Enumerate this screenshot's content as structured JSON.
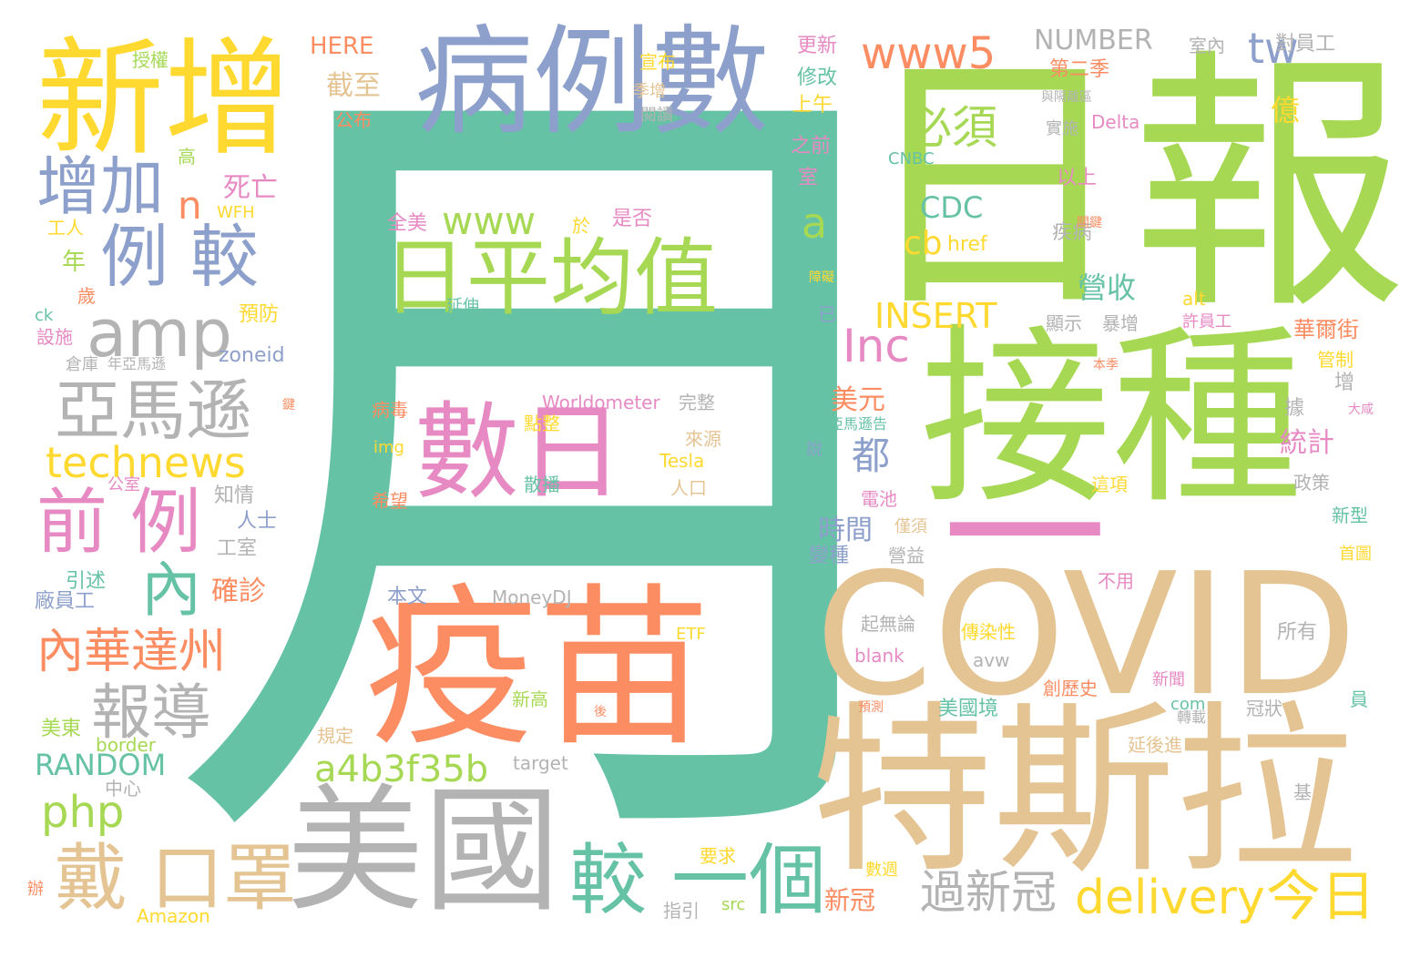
{
  "palette": {
    "green": "#a6d854",
    "teal": "#66c2a5",
    "orange": "#fc8d62",
    "blue": "#8da0cb",
    "pink": "#e78ac3",
    "yellow": "#ffd92f",
    "tan": "#e5c494",
    "gray": "#b3b3b3"
  },
  "words": [
    {
      "text": "月",
      "color": "teal"
    },
    {
      "text": "日報",
      "color": "green"
    },
    {
      "text": "接種",
      "color": "green"
    },
    {
      "text": "疫苗",
      "color": "orange"
    },
    {
      "text": "COVID",
      "color": "tan"
    },
    {
      "text": "特斯拉",
      "color": "tan"
    },
    {
      "text": "美國",
      "color": "gray"
    },
    {
      "text": "病例數",
      "color": "blue"
    },
    {
      "text": "新增",
      "color": "yellow"
    },
    {
      "text": "日平均值",
      "color": "green"
    },
    {
      "text": "數日",
      "color": "pink"
    },
    {
      "text": "一",
      "color": "pink"
    },
    {
      "text": "增加",
      "color": "blue"
    },
    {
      "text": "例 較",
      "color": "blue"
    },
    {
      "text": "amp",
      "color": "gray"
    },
    {
      "text": "亞馬遜",
      "color": "gray"
    },
    {
      "text": "technews",
      "color": "yellow"
    },
    {
      "text": "前 例",
      "color": "pink"
    },
    {
      "text": "內",
      "color": "teal"
    },
    {
      "text": "內華達州",
      "color": "orange"
    },
    {
      "text": "報導",
      "color": "gray"
    },
    {
      "text": "戴 口罩",
      "color": "tan"
    },
    {
      "text": "較 一個",
      "color": "teal"
    },
    {
      "text": "過新冠",
      "color": "gray"
    },
    {
      "text": "delivery",
      "color": "yellow"
    },
    {
      "text": "今日",
      "color": "yellow"
    },
    {
      "text": "php",
      "color": "green"
    },
    {
      "text": "a4b3f35b",
      "color": "green"
    },
    {
      "text": "RANDOM",
      "color": "teal"
    },
    {
      "text": "www5",
      "color": "orange"
    },
    {
      "text": "www",
      "color": "green"
    },
    {
      "text": "tw",
      "color": "blue"
    },
    {
      "text": "NUMBER",
      "color": "gray"
    },
    {
      "text": "必須",
      "color": "green"
    },
    {
      "text": "Inc",
      "color": "pink"
    },
    {
      "text": "INSERT",
      "color": "yellow"
    },
    {
      "text": "CDC",
      "color": "teal"
    },
    {
      "text": "cb",
      "color": "yellow"
    },
    {
      "text": "href",
      "color": "yellow"
    },
    {
      "text": "a",
      "color": "green"
    },
    {
      "text": "n",
      "color": "orange"
    },
    {
      "text": "營收",
      "color": "teal"
    },
    {
      "text": "HERE",
      "color": "orange"
    },
    {
      "text": "截至",
      "color": "tan"
    },
    {
      "text": "公布",
      "color": "orange"
    },
    {
      "text": "死亡",
      "color": "pink"
    },
    {
      "text": "WFH",
      "color": "yellow"
    },
    {
      "text": "美元",
      "color": "orange"
    },
    {
      "text": "都",
      "color": "blue"
    },
    {
      "text": "時間",
      "color": "blue"
    },
    {
      "text": "變種",
      "color": "blue"
    },
    {
      "text": "確診",
      "color": "orange"
    },
    {
      "text": "統計",
      "color": "pink"
    },
    {
      "text": "華爾街",
      "color": "orange"
    },
    {
      "text": "Delta",
      "color": "pink"
    },
    {
      "text": "CNBC",
      "color": "teal"
    },
    {
      "text": "億",
      "color": "yellow"
    },
    {
      "text": "以上",
      "color": "pink"
    },
    {
      "text": "疾病",
      "color": "gray"
    },
    {
      "text": "高",
      "color": "green"
    },
    {
      "text": "工人",
      "color": "yellow"
    },
    {
      "text": "年",
      "color": "green"
    },
    {
      "text": "歲",
      "color": "orange"
    },
    {
      "text": "ck",
      "color": "teal"
    },
    {
      "text": "設施",
      "color": "pink"
    },
    {
      "text": "預防",
      "color": "yellow"
    },
    {
      "text": "zoneid",
      "color": "blue"
    },
    {
      "text": "倉庫",
      "color": "gray"
    },
    {
      "text": "年亞馬遜",
      "color": "gray"
    },
    {
      "text": "知情",
      "color": "gray"
    },
    {
      "text": "公室",
      "color": "pink"
    },
    {
      "text": "人士",
      "color": "blue"
    },
    {
      "text": "工室",
      "color": "gray"
    },
    {
      "text": "引述",
      "color": "teal"
    },
    {
      "text": "廠員工",
      "color": "blue"
    },
    {
      "text": "美東",
      "color": "green"
    },
    {
      "text": "border",
      "color": "green"
    },
    {
      "text": "中心",
      "color": "gray"
    },
    {
      "text": "辦",
      "color": "orange"
    },
    {
      "text": "Amazon",
      "color": "yellow"
    },
    {
      "text": "指引",
      "color": "gray"
    },
    {
      "text": "src",
      "color": "green"
    },
    {
      "text": "要求",
      "color": "yellow"
    },
    {
      "text": "數週",
      "color": "yellow"
    },
    {
      "text": "新冠",
      "color": "orange"
    },
    {
      "text": "target",
      "color": "gray"
    },
    {
      "text": "規定",
      "color": "tan"
    },
    {
      "text": "新高",
      "color": "green"
    },
    {
      "text": "MoneyDJ",
      "color": "gray"
    },
    {
      "text": "本文",
      "color": "blue"
    },
    {
      "text": "ETF",
      "color": "yellow"
    },
    {
      "text": "希望",
      "color": "orange"
    },
    {
      "text": "散播",
      "color": "teal"
    },
    {
      "text": "img",
      "color": "yellow"
    },
    {
      "text": "點整",
      "color": "yellow"
    },
    {
      "text": "病毒",
      "color": "orange"
    },
    {
      "text": "Worldometer",
      "color": "pink"
    },
    {
      "text": "完整",
      "color": "gray"
    },
    {
      "text": "來源",
      "color": "tan"
    },
    {
      "text": "Tesla",
      "color": "yellow"
    },
    {
      "text": "人口",
      "color": "tan"
    },
    {
      "text": "全美",
      "color": "pink"
    },
    {
      "text": "於",
      "color": "yellow"
    },
    {
      "text": "是否",
      "color": "pink"
    },
    {
      "text": "延伸",
      "color": "teal"
    },
    {
      "text": "授權",
      "color": "green"
    },
    {
      "text": "宣布",
      "color": "yellow"
    },
    {
      "text": "季增",
      "color": "tan"
    },
    {
      "text": "閱讀",
      "color": "gray"
    },
    {
      "text": "更新",
      "color": "pink"
    },
    {
      "text": "修改",
      "color": "teal"
    },
    {
      "text": "上午",
      "color": "yellow"
    },
    {
      "text": "之前",
      "color": "pink"
    },
    {
      "text": "室",
      "color": "pink"
    },
    {
      "text": "第二季",
      "color": "orange"
    },
    {
      "text": "室內",
      "color": "gray"
    },
    {
      "text": "對員工",
      "color": "gray"
    },
    {
      "text": "與隔離區",
      "color": "gray"
    },
    {
      "text": "實施",
      "color": "gray"
    },
    {
      "text": "障礙",
      "color": "yellow"
    },
    {
      "text": "已",
      "color": "blue"
    },
    {
      "text": "顯示",
      "color": "gray"
    },
    {
      "text": "暴增",
      "color": "gray"
    },
    {
      "text": "alt",
      "color": "yellow"
    },
    {
      "text": "許員工",
      "color": "pink"
    },
    {
      "text": "管制",
      "color": "yellow"
    },
    {
      "text": "本季",
      "color": "orange"
    },
    {
      "text": "增",
      "color": "gray"
    },
    {
      "text": "據",
      "color": "gray"
    },
    {
      "text": "大咸",
      "color": "pink"
    },
    {
      "text": "亞馬遜告",
      "color": "teal"
    },
    {
      "text": "說",
      "color": "blue"
    },
    {
      "text": "電池",
      "color": "pink"
    },
    {
      "text": "這項",
      "color": "yellow"
    },
    {
      "text": "政策",
      "color": "gray"
    },
    {
      "text": "新型",
      "color": "teal"
    },
    {
      "text": "僅須",
      "color": "tan"
    },
    {
      "text": "營益",
      "color": "gray"
    },
    {
      "text": "首圖",
      "color": "yellow"
    },
    {
      "text": "不用",
      "color": "pink"
    },
    {
      "text": "起無論",
      "color": "gray"
    },
    {
      "text": "傳染性",
      "color": "yellow"
    },
    {
      "text": "所有",
      "color": "gray"
    },
    {
      "text": "blank",
      "color": "pink"
    },
    {
      "text": "avw",
      "color": "gray"
    },
    {
      "text": "新聞",
      "color": "pink"
    },
    {
      "text": "創歷史",
      "color": "orange"
    },
    {
      "text": "美國境",
      "color": "teal"
    },
    {
      "text": "com",
      "color": "teal"
    },
    {
      "text": "轉載",
      "color": "gray"
    },
    {
      "text": "冠狀",
      "color": "gray"
    },
    {
      "text": "員",
      "color": "teal"
    },
    {
      "text": "延後進",
      "color": "tan"
    },
    {
      "text": "基",
      "color": "gray"
    },
    {
      "text": "預測",
      "color": "orange"
    },
    {
      "text": "後",
      "color": "orange"
    },
    {
      "text": "關鍵",
      "color": "orange"
    },
    {
      "text": "鍵",
      "color": "orange"
    }
  ]
}
